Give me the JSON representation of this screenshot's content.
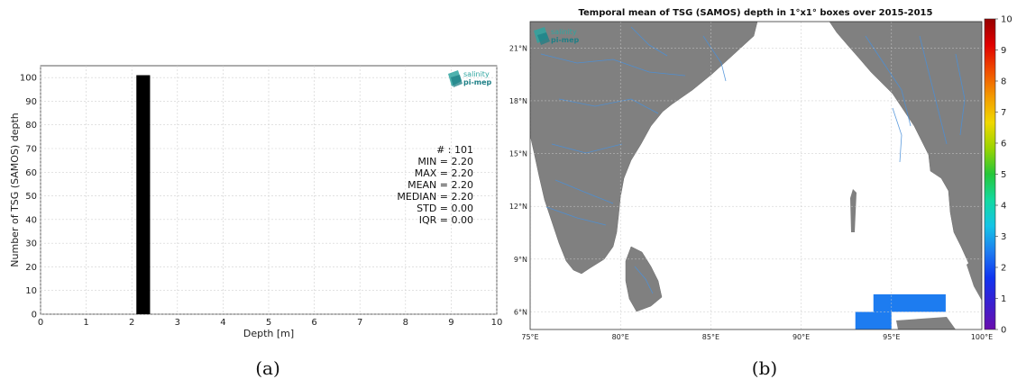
{
  "colors": {
    "bar": "#000000",
    "land": "#808080",
    "river": "#4a90d9",
    "grid": "#d0d0d0",
    "logo_teal": "#2fa5a0",
    "logo_dark": "#1d7f86"
  },
  "chart_data": [
    {
      "type": "bar",
      "xlabel": "Depth [m]",
      "ylabel": "Number of TSG (SAMOS) depth",
      "xlim": [
        0,
        10
      ],
      "ylim": [
        0,
        105
      ],
      "xticks": [
        0,
        1,
        2,
        3,
        4,
        5,
        6,
        7,
        8,
        9,
        10
      ],
      "yticks": [
        0,
        10,
        20,
        30,
        40,
        50,
        60,
        70,
        80,
        90,
        100
      ],
      "grid": true,
      "bars": [
        {
          "x_start": 2.1,
          "x_end": 2.4,
          "value": 101
        }
      ],
      "stats": [
        "# : 101",
        "MIN = 2.20",
        "MAX =  2.20",
        "MEAN = 2.20",
        "MEDIAN = 2.20",
        "STD = 0.00",
        "IQR = 0.00"
      ],
      "logo": [
        "salinity",
        "pi-mep"
      ],
      "caption": "(a)"
    },
    {
      "type": "heatmap",
      "title": "Temporal mean of TSG (SAMOS) depth in 1°x1° boxes over 2015-2015",
      "lon_range": [
        75,
        100
      ],
      "lat_range": [
        5,
        22.5
      ],
      "xticks": [
        "75°E",
        "80°E",
        "85°E",
        "90°E",
        "95°E",
        "100°E"
      ],
      "yticks": [
        "6°N",
        "9°N",
        "12°N",
        "15°N",
        "18°N",
        "21°N"
      ],
      "grid": true,
      "colorbar": {
        "range": [
          0,
          10
        ],
        "ticks": [
          "0",
          "1",
          "2",
          "3",
          "4",
          "5",
          "6",
          "7",
          "8",
          "9",
          "10"
        ],
        "colors": [
          "#6a0dad",
          "#3a1fcf",
          "#1034f0",
          "#1d7cf0",
          "#14c4e6",
          "#13d9a0",
          "#25c63a",
          "#9ad400",
          "#f0d800",
          "#f39a00",
          "#f04d00",
          "#e00000",
          "#960000"
        ]
      },
      "cells": [
        {
          "lon": [
            94,
            98
          ],
          "lat": [
            6,
            7
          ],
          "value": 2.2
        },
        {
          "lon": [
            93,
            95
          ],
          "lat": [
            5,
            6
          ],
          "value": 2.2
        }
      ],
      "logo": [
        "salinity",
        "pi-mep"
      ],
      "caption": "(b)"
    }
  ]
}
